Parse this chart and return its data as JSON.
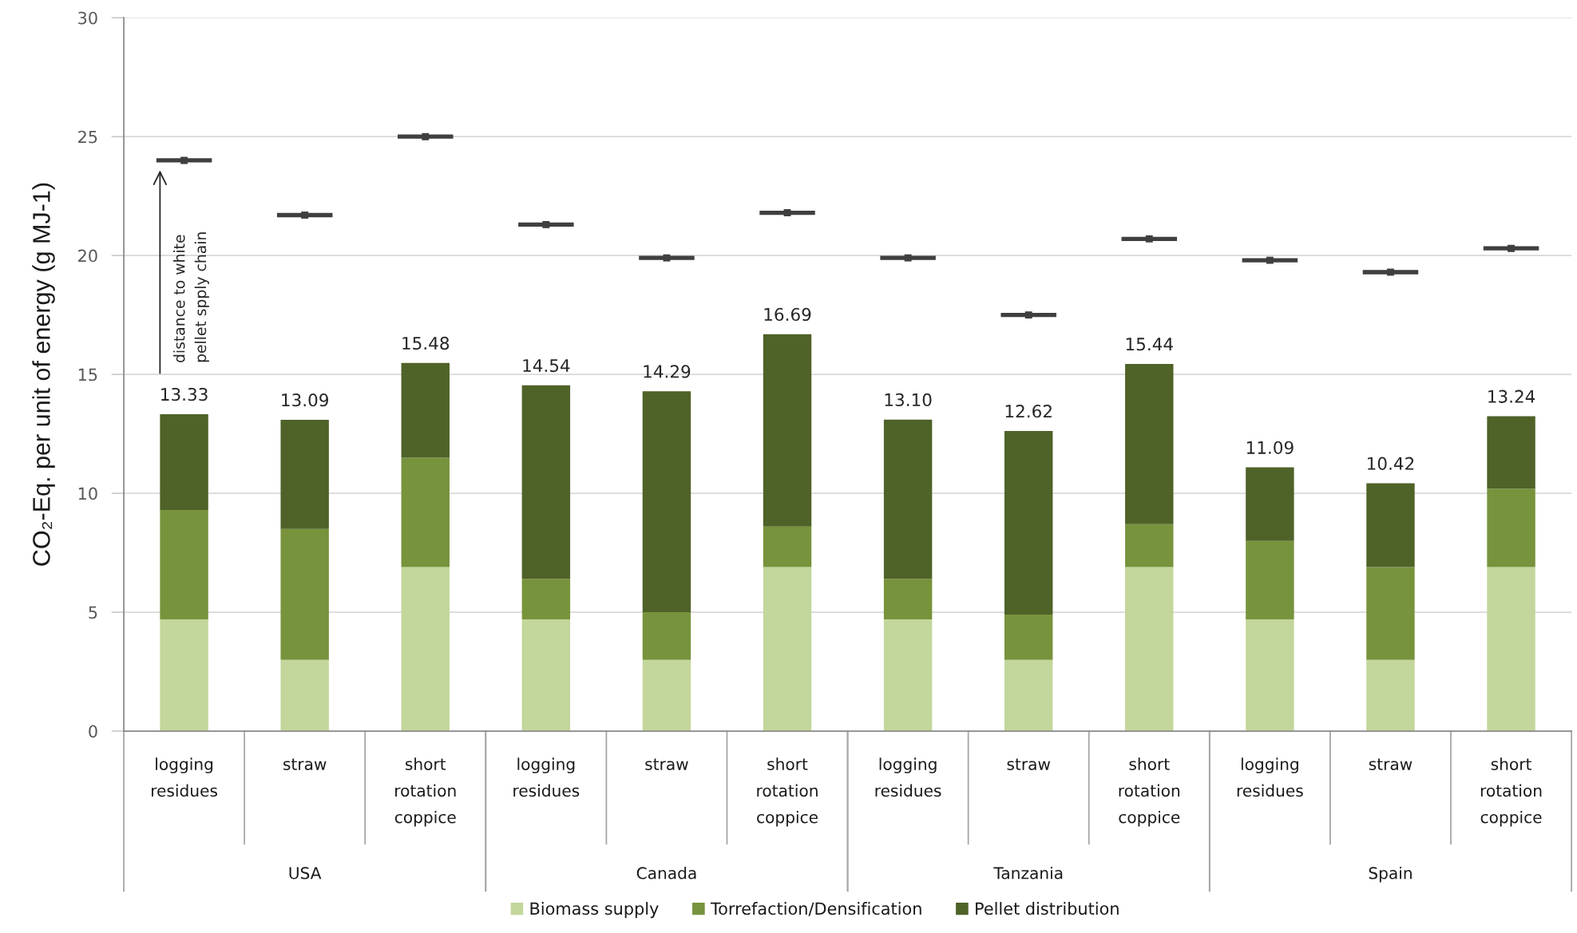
{
  "chart_data": {
    "type": "bar",
    "stacked": true,
    "categories": [
      "logging\nresidues",
      "straw",
      "short\nrotation\ncoppice",
      "logging\nresidues",
      "straw",
      "short\nrotation\ncoppice",
      "logging\nresidues",
      "straw",
      "short\nrotation\ncoppice",
      "logging\nresidues",
      "straw",
      "short\nrotation\ncoppice"
    ],
    "series": [
      {
        "name": "Biomass supply",
        "color": "#c3d69b",
        "values": [
          4.7,
          3.0,
          6.9,
          4.7,
          3.0,
          6.9,
          4.7,
          3.0,
          6.9,
          4.7,
          3.0,
          6.9
        ]
      },
      {
        "name": "Torrefaction/Densification",
        "color": "#77933c",
        "values": [
          4.6,
          5.5,
          4.6,
          1.7,
          2.0,
          1.7,
          1.7,
          1.9,
          1.8,
          3.3,
          3.9,
          3.3
        ]
      },
      {
        "name": "Pellet distribution",
        "color": "#4f6228",
        "values": [
          4.03,
          4.59,
          3.98,
          8.14,
          9.29,
          8.09,
          6.7,
          7.72,
          6.74,
          3.09,
          3.52,
          3.04
        ]
      },
      {
        "type": "scatter",
        "marker": "square",
        "color": "#3f3f3f",
        "values": [
          24.0,
          21.7,
          25.0,
          21.3,
          19.9,
          21.8,
          19.9,
          17.5,
          20.7,
          19.8,
          19.3,
          20.3
        ]
      }
    ],
    "totals": [
      "13.33",
      "13.09",
      "15.48",
      "14.54",
      "14.29",
      "16.69",
      "13.10",
      "12.62",
      "15.44",
      "11.09",
      "10.42",
      "13.24"
    ],
    "ylabel": "CO₂-Eq. per unit of energy (g MJ-1)",
    "ylim": [
      0,
      30
    ],
    "yticks": [
      0,
      5,
      10,
      15,
      20,
      25,
      30
    ],
    "grid": "y",
    "legend": "bottom",
    "annotations": [
      "distance to white\npellet spply chain",
      "USA",
      "Canada",
      "Tanzania",
      "Spain"
    ]
  }
}
